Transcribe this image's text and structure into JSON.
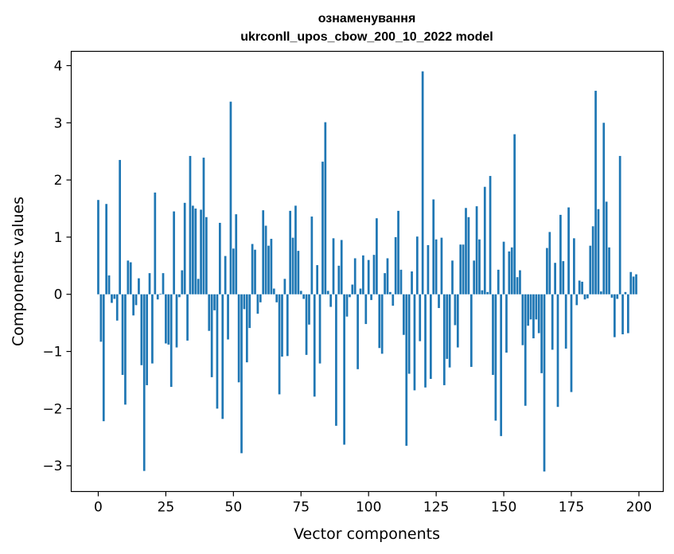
{
  "chart_data": {
    "type": "bar",
    "title_line1": "ознаменування",
    "title_line2": "ukrconll_upos_cbow_200_10_2022 model",
    "xlabel": "Vector components",
    "ylabel": "Components values",
    "xlim": [
      -10,
      209
    ],
    "ylim": [
      -3.45,
      4.25
    ],
    "xticks": [
      0,
      25,
      50,
      75,
      100,
      125,
      150,
      175,
      200
    ],
    "yticks": [
      -3,
      -2,
      -1,
      0,
      1,
      2,
      3,
      4
    ],
    "bar_color": "#1f77b4",
    "values": [
      1.65,
      -0.83,
      -2.22,
      1.58,
      0.33,
      -0.15,
      -0.08,
      -0.46,
      2.35,
      -1.41,
      -1.93,
      0.59,
      0.56,
      -0.37,
      -0.19,
      0.28,
      -1.24,
      -3.09,
      -1.59,
      0.37,
      -1.21,
      1.78,
      -0.09,
      0.01,
      0.37,
      -0.86,
      -0.88,
      -1.62,
      1.45,
      -0.93,
      -0.05,
      0.42,
      1.6,
      -0.81,
      2.42,
      1.55,
      1.5,
      0.27,
      1.48,
      2.39,
      1.35,
      -0.64,
      -1.45,
      -0.28,
      -2.0,
      1.25,
      -2.18,
      0.67,
      -0.79,
      3.37,
      0.8,
      1.4,
      -1.54,
      -2.78,
      -0.26,
      -1.19,
      -0.59,
      0.88,
      0.78,
      -0.34,
      -0.14,
      1.47,
      1.2,
      0.85,
      0.97,
      0.1,
      -0.14,
      -1.75,
      -1.09,
      0.27,
      -1.08,
      1.46,
      0.99,
      1.55,
      0.76,
      0.06,
      -0.08,
      -1.06,
      -0.53,
      1.36,
      -1.79,
      0.51,
      -1.21,
      2.32,
      3.01,
      0.06,
      -0.22,
      0.98,
      -2.3,
      0.5,
      0.95,
      -2.63,
      -0.39,
      -0.05,
      0.17,
      0.63,
      -1.31,
      0.1,
      0.68,
      -0.52,
      0.6,
      -0.1,
      0.69,
      1.33,
      -0.94,
      -1.04,
      0.37,
      0.63,
      0.04,
      -0.2,
      1.0,
      1.46,
      0.43,
      -0.71,
      -2.65,
      -1.39,
      0.4,
      -1.68,
      1.01,
      -0.82,
      3.9,
      -1.63,
      0.86,
      -1.48,
      1.66,
      0.96,
      -0.24,
      0.99,
      -1.59,
      -1.13,
      -1.28,
      0.59,
      -0.54,
      -0.93,
      0.87,
      0.87,
      1.51,
      1.35,
      -1.27,
      0.59,
      1.54,
      0.96,
      0.07,
      1.88,
      0.04,
      2.07,
      -1.41,
      -2.21,
      0.43,
      -2.48,
      0.92,
      -1.02,
      0.75,
      0.82,
      2.8,
      0.3,
      0.42,
      -0.89,
      -1.95,
      -0.55,
      -0.44,
      -0.77,
      -0.44,
      -0.68,
      -1.38,
      -3.1,
      0.81,
      1.09,
      -0.97,
      0.55,
      -1.97,
      1.39,
      0.58,
      -0.95,
      1.52,
      -1.71,
      0.98,
      -0.19,
      0.24,
      0.22,
      -0.09,
      -0.07,
      0.85,
      1.19,
      3.56,
      1.49,
      0.05,
      3.0,
      1.62,
      0.82,
      -0.06,
      -0.75,
      -0.08,
      2.42,
      -0.7,
      0.04,
      -0.68,
      0.39,
      0.31,
      0.35
    ]
  }
}
